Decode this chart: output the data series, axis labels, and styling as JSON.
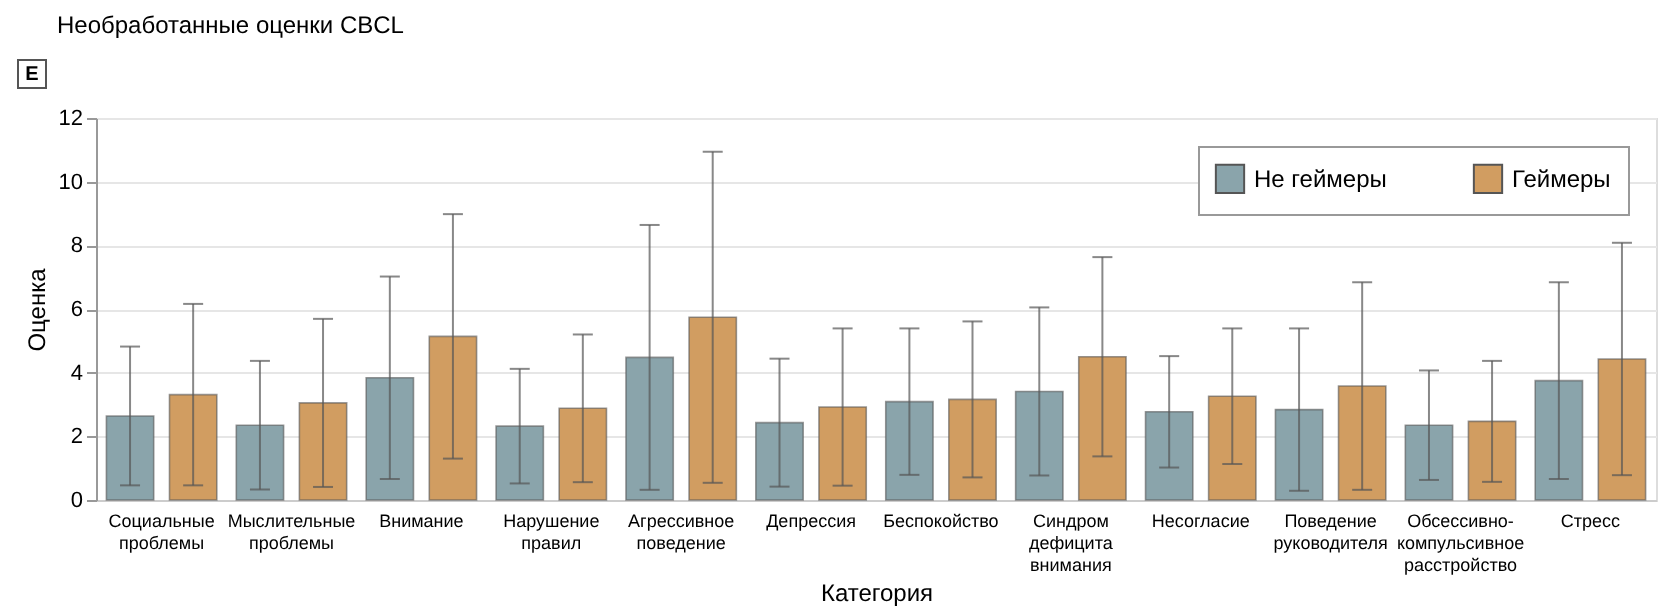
{
  "chart_data": {
    "type": "bar",
    "title": "Необработанные оценки CBCL",
    "annotations": [
      "E"
    ],
    "xlabel": "Категория",
    "ylabel": "Оценка",
    "categories": [
      "Социальные проблемы",
      "Мыслительные проблемы",
      "Внимание",
      "Нарушение правил",
      "Агрессивное поведение",
      "Депрессия",
      "Беспокойство",
      "Синдром дефицита внимания",
      "Несогласие",
      "Поведение руководителя",
      "Обсессивно-компульсивное расстройство",
      "Стресс"
    ],
    "series": [
      {
        "name": "Не геймеры",
        "color": "#8aa4ab",
        "values": [
          2.64,
          2.35,
          3.84,
          2.32,
          4.48,
          2.43,
          3.09,
          3.41,
          2.77,
          2.84,
          2.35,
          3.75
        ],
        "errors": [
          2.18,
          2.02,
          3.18,
          1.8,
          4.16,
          2.01,
          2.3,
          2.64,
          1.75,
          2.55,
          1.72,
          3.09
        ]
      },
      {
        "name": "Геймеры",
        "color": "#d19d61",
        "values": [
          3.31,
          3.05,
          5.14,
          2.88,
          5.74,
          2.92,
          3.16,
          4.5,
          3.26,
          3.58,
          2.47,
          4.43
        ],
        "errors": [
          2.85,
          2.64,
          3.84,
          2.32,
          5.2,
          2.47,
          2.45,
          3.13,
          2.13,
          3.26,
          1.9,
          3.65
        ]
      }
    ],
    "ylim": [
      0,
      12
    ],
    "yticks": [
      0,
      2,
      4,
      6,
      8,
      10,
      12
    ],
    "grid": "y",
    "legend": "top right"
  }
}
